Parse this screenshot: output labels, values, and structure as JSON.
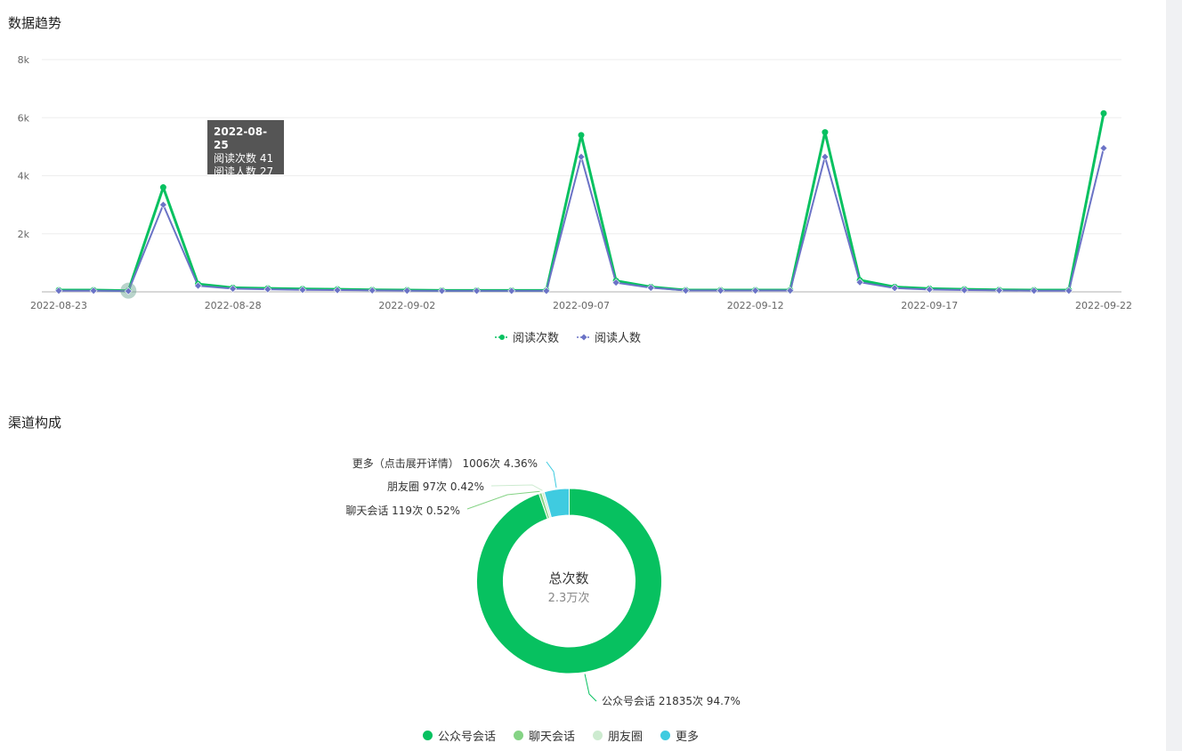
{
  "trend": {
    "title": "数据趋势",
    "tooltip": {
      "date": "2022-08-25",
      "line1": "阅读次数 41",
      "line2": "阅读人数 27"
    }
  },
  "channel": {
    "title": "渠道构成",
    "center_title": "总次数",
    "center_value": "2.3万次"
  },
  "colors": {
    "reads": "#07c160",
    "readers": "#6b73c6",
    "c1": "#07c160",
    "c2": "#85d385",
    "c3": "#cdebd0",
    "c4": "#3fcbe0"
  },
  "chart_data": [
    {
      "type": "line",
      "title": "数据趋势",
      "x": [
        "2022-08-23",
        "2022-08-24",
        "2022-08-25",
        "2022-08-26",
        "2022-08-27",
        "2022-08-28",
        "2022-08-29",
        "2022-08-30",
        "2022-08-31",
        "2022-09-01",
        "2022-09-02",
        "2022-09-03",
        "2022-09-04",
        "2022-09-05",
        "2022-09-06",
        "2022-09-07",
        "2022-09-08",
        "2022-09-09",
        "2022-09-10",
        "2022-09-11",
        "2022-09-12",
        "2022-09-13",
        "2022-09-14",
        "2022-09-15",
        "2022-09-16",
        "2022-09-17",
        "2022-09-18",
        "2022-09-19",
        "2022-09-20",
        "2022-09-21",
        "2022-09-22"
      ],
      "x_tick_labels": [
        "2022-08-23",
        "2022-08-28",
        "2022-09-02",
        "2022-09-07",
        "2022-09-12",
        "2022-09-17",
        "2022-09-22"
      ],
      "y_tick_labels": [
        "2k",
        "4k",
        "6k",
        "8k"
      ],
      "ylim": [
        0,
        8000
      ],
      "grid": true,
      "legend_position": "bottom",
      "series": [
        {
          "name": "阅读次数",
          "values": [
            60,
            60,
            41,
            3600,
            270,
            140,
            120,
            100,
            90,
            70,
            60,
            50,
            50,
            50,
            50,
            5400,
            380,
            170,
            60,
            60,
            60,
            60,
            5500,
            400,
            170,
            110,
            90,
            70,
            60,
            60,
            6150
          ]
        },
        {
          "name": "阅读人数",
          "values": [
            40,
            40,
            27,
            3000,
            210,
            110,
            90,
            70,
            60,
            50,
            40,
            35,
            35,
            35,
            35,
            4650,
            320,
            140,
            45,
            45,
            45,
            45,
            4650,
            330,
            130,
            80,
            60,
            50,
            40,
            40,
            4950
          ]
        }
      ]
    },
    {
      "type": "pie",
      "title": "渠道构成",
      "labels": [
        "公众号会话",
        "聊天会话",
        "朋友圈",
        "更多"
      ],
      "values": [
        21835,
        119,
        97,
        1006
      ],
      "percent": [
        94.7,
        0.52,
        0.42,
        4.36
      ],
      "annotations": [
        "公众号会话 21835次 94.7%",
        "聊天会话 119次 0.52%",
        "朋友圈 97次 0.42%",
        "更多（点击展开详情） 1006次 4.36%"
      ],
      "legend_position": "bottom"
    }
  ]
}
